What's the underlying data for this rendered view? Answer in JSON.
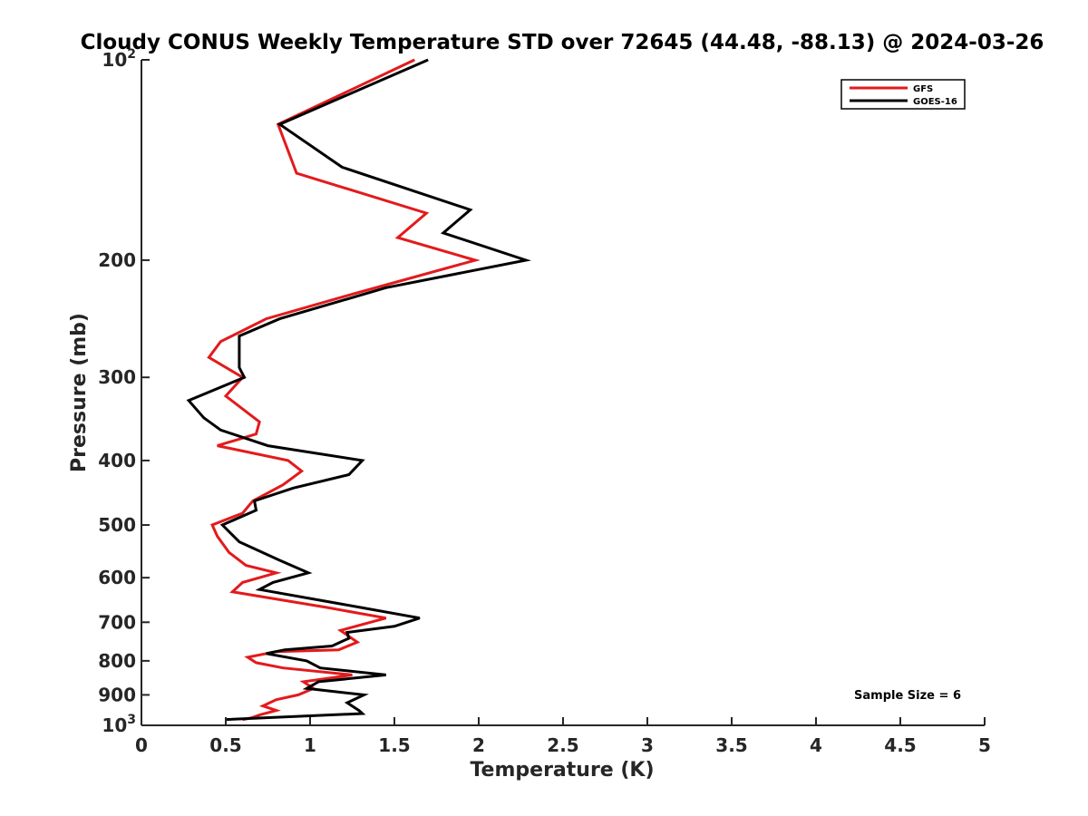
{
  "chart_data": {
    "type": "line",
    "title": "Cloudy CONUS Weekly Temperature STD over 72645 (44.48, -88.13) @ 2024-03-26",
    "xlabel": "Temperature (K)",
    "ylabel": "Pressure (mb)",
    "xlim": [
      0,
      5
    ],
    "ylim": [
      100,
      1000
    ],
    "y_scale": "log",
    "y_reversed": true,
    "x_ticks": [
      {
        "value": 0,
        "label": "0"
      },
      {
        "value": 0.5,
        "label": "0.5"
      },
      {
        "value": 1,
        "label": "1"
      },
      {
        "value": 1.5,
        "label": "1.5"
      },
      {
        "value": 2,
        "label": "2"
      },
      {
        "value": 2.5,
        "label": "2.5"
      },
      {
        "value": 3,
        "label": "3"
      },
      {
        "value": 3.5,
        "label": "3.5"
      },
      {
        "value": 4,
        "label": "4"
      },
      {
        "value": 4.5,
        "label": "4.5"
      },
      {
        "value": 5,
        "label": "5"
      }
    ],
    "y_ticks": [
      {
        "value": 100,
        "label": "10",
        "sup": "2"
      },
      {
        "value": 200,
        "label": "200"
      },
      {
        "value": 300,
        "label": "300"
      },
      {
        "value": 400,
        "label": "400"
      },
      {
        "value": 500,
        "label": "500"
      },
      {
        "value": 600,
        "label": "600"
      },
      {
        "value": 700,
        "label": "700"
      },
      {
        "value": 800,
        "label": "800"
      },
      {
        "value": 900,
        "label": "900"
      },
      {
        "value": 1000,
        "label": "10",
        "sup": "3"
      }
    ],
    "grid": false,
    "legend_position": "top-right",
    "series": [
      {
        "name": "GFS",
        "color": "#e31a1c",
        "points": [
          [
            1.62,
            100
          ],
          [
            0.81,
            125
          ],
          [
            0.92,
            148
          ],
          [
            1.69,
            170
          ],
          [
            1.52,
            185
          ],
          [
            1.98,
            200
          ],
          [
            1.25,
            225
          ],
          [
            0.74,
            245
          ],
          [
            0.47,
            265
          ],
          [
            0.4,
            280
          ],
          [
            0.6,
            300
          ],
          [
            0.5,
            320
          ],
          [
            0.7,
            350
          ],
          [
            0.68,
            365
          ],
          [
            0.45,
            380
          ],
          [
            0.87,
            400
          ],
          [
            0.95,
            415
          ],
          [
            0.84,
            435
          ],
          [
            0.66,
            460
          ],
          [
            0.6,
            480
          ],
          [
            0.42,
            500
          ],
          [
            0.45,
            520
          ],
          [
            0.52,
            550
          ],
          [
            0.62,
            575
          ],
          [
            0.8,
            590
          ],
          [
            0.6,
            610
          ],
          [
            0.54,
            630
          ],
          [
            1.1,
            665
          ],
          [
            1.45,
            690
          ],
          [
            1.18,
            720
          ],
          [
            1.28,
            750
          ],
          [
            1.17,
            770
          ],
          [
            0.8,
            775
          ],
          [
            0.63,
            790
          ],
          [
            0.68,
            805
          ],
          [
            0.84,
            820
          ],
          [
            1.25,
            840
          ],
          [
            0.96,
            860
          ],
          [
            1.02,
            880
          ],
          [
            0.93,
            900
          ],
          [
            0.8,
            915
          ],
          [
            0.72,
            935
          ],
          [
            0.8,
            950
          ],
          [
            0.7,
            965
          ],
          [
            0.65,
            975
          ],
          [
            0.6,
            980
          ]
        ]
      },
      {
        "name": "GOES-16",
        "color": "#000000",
        "points": [
          [
            1.7,
            100
          ],
          [
            0.82,
            125
          ],
          [
            1.19,
            145
          ],
          [
            1.95,
            168
          ],
          [
            1.79,
            182
          ],
          [
            2.28,
            200
          ],
          [
            1.45,
            220
          ],
          [
            0.82,
            245
          ],
          [
            0.58,
            260
          ],
          [
            0.58,
            290
          ],
          [
            0.61,
            300
          ],
          [
            0.28,
            325
          ],
          [
            0.37,
            345
          ],
          [
            0.47,
            360
          ],
          [
            0.75,
            380
          ],
          [
            1.31,
            400
          ],
          [
            1.23,
            420
          ],
          [
            0.9,
            440
          ],
          [
            0.67,
            460
          ],
          [
            0.68,
            475
          ],
          [
            0.48,
            500
          ],
          [
            0.58,
            530
          ],
          [
            0.82,
            565
          ],
          [
            0.99,
            590
          ],
          [
            0.78,
            610
          ],
          [
            0.7,
            625
          ],
          [
            1.3,
            665
          ],
          [
            1.65,
            690
          ],
          [
            1.5,
            710
          ],
          [
            1.22,
            725
          ],
          [
            1.23,
            740
          ],
          [
            1.13,
            760
          ],
          [
            0.85,
            770
          ],
          [
            0.74,
            780
          ],
          [
            0.98,
            800
          ],
          [
            1.06,
            820
          ],
          [
            1.45,
            840
          ],
          [
            1.05,
            860
          ],
          [
            0.98,
            880
          ],
          [
            1.32,
            900
          ],
          [
            1.22,
            925
          ],
          [
            1.29,
            950
          ],
          [
            1.31,
            960
          ],
          [
            0.5,
            980
          ]
        ]
      }
    ],
    "annotations": [
      {
        "text": "Sample Size = 6",
        "position": "bottom-right"
      }
    ]
  }
}
